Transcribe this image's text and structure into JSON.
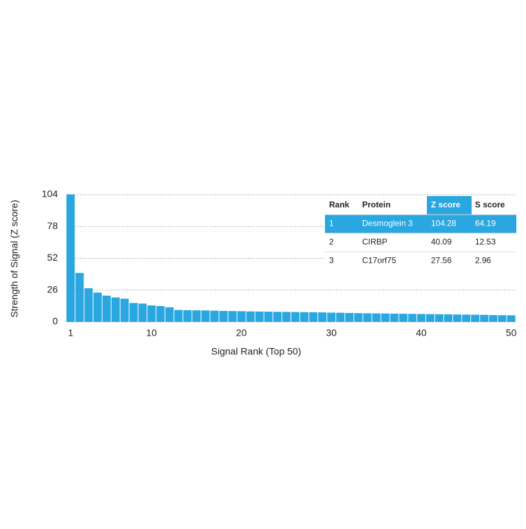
{
  "chart_data": {
    "type": "bar",
    "xlabel": "Signal Rank (Top 50)",
    "ylabel": "Strength of Signal (Z score)",
    "x": [
      1,
      2,
      3,
      4,
      5,
      6,
      7,
      8,
      9,
      10,
      11,
      12,
      13,
      14,
      15,
      16,
      17,
      18,
      19,
      20,
      21,
      22,
      23,
      24,
      25,
      26,
      27,
      28,
      29,
      30,
      31,
      32,
      33,
      34,
      35,
      36,
      37,
      38,
      39,
      40,
      41,
      42,
      43,
      44,
      45,
      46,
      47,
      48,
      49,
      50
    ],
    "values": [
      104.28,
      40.09,
      27.56,
      24,
      21.5,
      20,
      19,
      15.5,
      15,
      13.5,
      13,
      12,
      9.8,
      9.6,
      9.5,
      9.4,
      9.2,
      9,
      8.9,
      8.8,
      8.6,
      8.5,
      8.4,
      8.3,
      8.2,
      8.1,
      8,
      7.9,
      7.8,
      7.6,
      7.5,
      7.3,
      7.2,
      7.1,
      7,
      6.9,
      6.8,
      6.7,
      6.6,
      6.5,
      6.4,
      6.3,
      6.2,
      6.1,
      6,
      5.9,
      5.8,
      5.6,
      5.5,
      5.4
    ],
    "color": "#2aa7e0",
    "xlim": [
      0.5,
      50.5
    ],
    "xticks": [
      1,
      10,
      20,
      30,
      40,
      50
    ],
    "ylim": [
      0,
      104
    ],
    "yticks": [
      0,
      26,
      52,
      78,
      104
    ],
    "grid": true
  },
  "table": {
    "columns": [
      "Rank",
      "Protein",
      "Z score",
      "S score"
    ],
    "rows": [
      [
        1,
        "Desmoglein 3",
        104.28,
        64.19
      ],
      [
        2,
        "CIRBP",
        40.09,
        12.53
      ],
      [
        3,
        "C17orf75",
        27.56,
        2.96
      ]
    ],
    "highlight_color": "#2aa7e0"
  }
}
